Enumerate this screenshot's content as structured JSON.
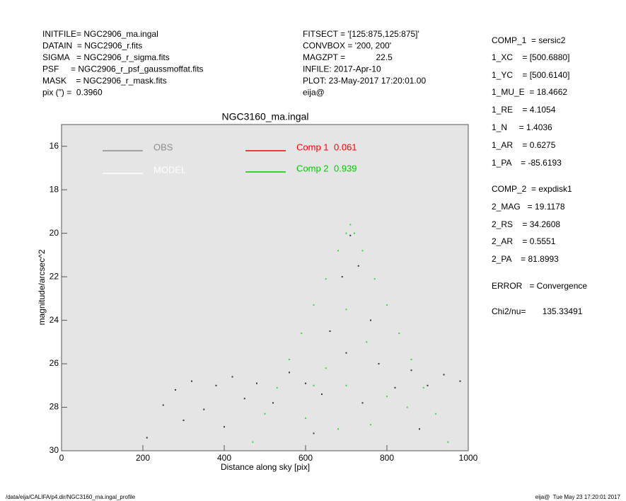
{
  "header": {
    "left": [
      "INITFILE= NGC2906_ma.ingal",
      "DATAIN  = NGC2906_r.fits",
      "SIGMA   = NGC2906_r_sigma.fits",
      "PSF     = NGC2906_r_psf_gaussmoffat.fits",
      "MASK    = NGC2906_r_mask.fits",
      "pix (\") =  0.3960"
    ],
    "middle": [
      "FITSECT = '[125:875,125:875]'",
      "CONVBOX = '200, 200'",
      "MAGZPT =             22.5",
      "INFILE: 2017-Apr-10",
      "PLOT: 23-May-2017 17:20:01.00",
      "eija@"
    ]
  },
  "params": [
    "COMP_1  = sersic2",
    "1_XC    = [500.6880]",
    "1_YC    = [500.6140]",
    "1_MU_E  = 18.4662",
    "1_RE    = 4.1054",
    "1_N     = 1.4036",
    "1_AR    = 0.6275",
    "1_PA    = -85.6193",
    "COMP_2  = expdisk1",
    "2_MAG   = 19.1178",
    "2_RS    = 34.2608",
    "2_AR    = 0.5551",
    "2_PA    = 81.8993",
    "ERROR   = Convergence",
    "Chi2/nu=       135.33491"
  ],
  "footer": {
    "left": "/data/eija/CALIFA/p4.dir/NGC3160_ma.ingal_profile",
    "right": "eija@  Tue May 23 17:20:01 2017"
  },
  "chart_data": {
    "type": "scatter",
    "title": "NGC3160_ma.ingal",
    "xlabel": "Distance along sky [pix]",
    "ylabel": "magnitude/arcsec^2",
    "xlim": [
      0,
      1000
    ],
    "ylim": [
      30,
      15
    ],
    "xticks": [
      0,
      200,
      400,
      600,
      800,
      1000
    ],
    "yticks": [
      16,
      18,
      20,
      22,
      24,
      26,
      28,
      30
    ],
    "legend": [
      {
        "name": "OBS",
        "color": "#8c8c8c"
      },
      {
        "name": "MODEL",
        "color": "#ffffff"
      },
      {
        "name": "Comp 1",
        "value": 0.061,
        "color": "#ff0000"
      },
      {
        "name": "Comp 2",
        "value": 0.939,
        "color": "#00cc00"
      }
    ],
    "series": [
      {
        "name": "OBS",
        "color": "#333333",
        "x": [
          210,
          250,
          280,
          320,
          350,
          380,
          420,
          450,
          480,
          520,
          560,
          600,
          640,
          660,
          690,
          710,
          730,
          760,
          780,
          820,
          860,
          900,
          940,
          980,
          300,
          400,
          700,
          740,
          620,
          880
        ],
        "y": [
          29.4,
          27.9,
          27.2,
          26.8,
          28.1,
          27.0,
          26.6,
          27.6,
          26.9,
          27.8,
          26.4,
          26.9,
          27.4,
          24.5,
          22.0,
          20.1,
          21.5,
          24.0,
          26.0,
          27.1,
          26.3,
          27.0,
          26.5,
          26.8,
          28.6,
          28.9,
          25.5,
          27.8,
          29.2,
          29.0
        ]
      },
      {
        "name": "Comp 2",
        "color": "#33dd33",
        "x": [
          470,
          500,
          530,
          560,
          590,
          620,
          650,
          680,
          700,
          710,
          720,
          740,
          770,
          800,
          830,
          860,
          890,
          920,
          950,
          600,
          650,
          700,
          750,
          800,
          700,
          680,
          760,
          620,
          850
        ],
        "y": [
          29.6,
          28.3,
          27.1,
          25.8,
          24.6,
          23.3,
          22.1,
          20.8,
          20.0,
          19.6,
          20.0,
          20.8,
          22.1,
          23.3,
          24.6,
          25.8,
          27.1,
          28.3,
          29.6,
          28.5,
          26.2,
          23.5,
          25.0,
          27.5,
          27.0,
          29.0,
          28.8,
          27.0,
          28.0
        ]
      }
    ]
  }
}
